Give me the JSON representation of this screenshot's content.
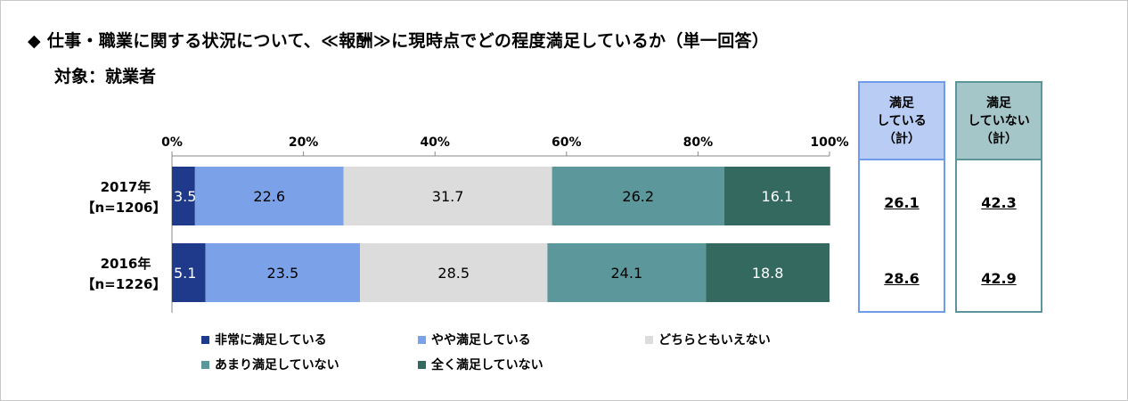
{
  "title": "◆ 仕事・職業に関する状況について、≪報酬≫に現時点でどの程度満足しているか（単一回答）",
  "subtitle": "対象：就業者",
  "chart_data": {
    "type": "bar",
    "orientation": "horizontal-stacked-100",
    "categories": [
      {
        "year": "2017年",
        "n": "【n=1206】"
      },
      {
        "year": "2016年",
        "n": "【n=1226】"
      }
    ],
    "xticks": [
      "0%",
      "20%",
      "40%",
      "60%",
      "80%",
      "100%"
    ],
    "xlim": [
      0,
      100
    ],
    "series": [
      {
        "name": "非常に満足している",
        "color": "#1f3a8a",
        "values": [
          3.5,
          5.1
        ]
      },
      {
        "name": "やや満足している",
        "color": "#7ba2e8",
        "values": [
          22.6,
          23.5
        ]
      },
      {
        "name": "どちらともいえない",
        "color": "#dcdcdc",
        "values": [
          31.7,
          28.5
        ]
      },
      {
        "name": "あまり満足していない",
        "color": "#5b979b",
        "values": [
          26.2,
          24.1
        ]
      },
      {
        "name": "全く満足していない",
        "color": "#33695f",
        "values": [
          16.1,
          18.8
        ]
      }
    ],
    "legend_position": "bottom",
    "summary_boxes": [
      {
        "label": "満足\nしている\n（計）",
        "values": [
          "26.1",
          "28.6"
        ],
        "color": "#b9cdf4"
      },
      {
        "label": "満足\nしていない\n（計）",
        "values": [
          "42.3",
          "42.9"
        ],
        "color": "#a5c6c9"
      }
    ]
  }
}
